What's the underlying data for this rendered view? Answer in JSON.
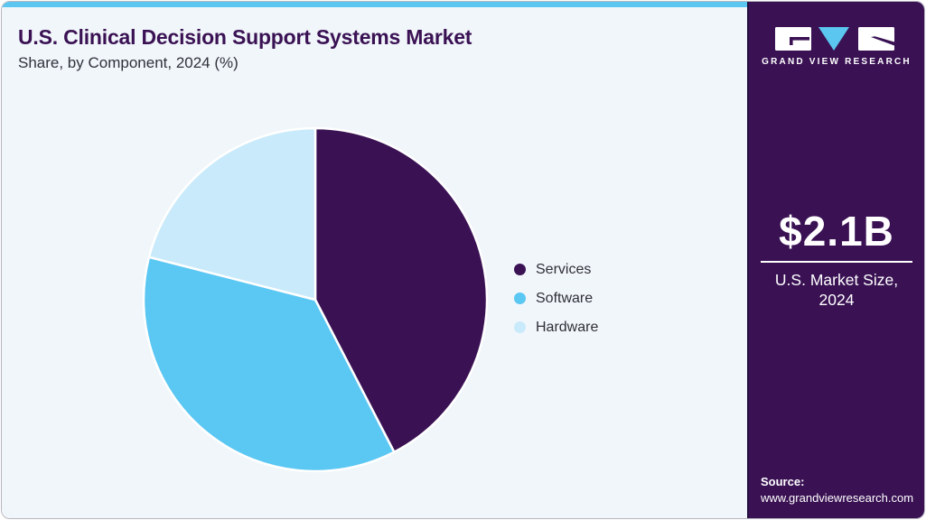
{
  "header": {
    "title": "U.S. Clinical Decision Support Systems Market",
    "subtitle": "Share, by Component, 2024 (%)"
  },
  "chart_data": {
    "type": "pie",
    "title": "U.S. Clinical Decision Support Systems Market Share, by Component, 2024 (%)",
    "categories": [
      "Services",
      "Software",
      "Hardware"
    ],
    "values": [
      42.4,
      36.6,
      21.0
    ],
    "unit": "%",
    "colors": [
      "#3a1254",
      "#5bc7f3",
      "#c8eafb"
    ],
    "slice_border_color": "#ffffff",
    "start_angle_deg": 0,
    "direction": "clockwise",
    "legend_position": "right",
    "data_labels": false
  },
  "sidebar": {
    "brand": "GRAND VIEW RESEARCH",
    "market_size": {
      "value": "$2.1B",
      "label_line1": "U.S. Market Size,",
      "label_line2": "2024"
    },
    "source": {
      "label": "Source:",
      "url": "www.grandviewresearch.com"
    },
    "background": "#3a1254"
  },
  "theme": {
    "accent_bar": "#5bc6ef",
    "main_background": "#f1f6fa",
    "title_color": "#3a1254",
    "subtitle_color": "#31313d",
    "legend_text_color": "#303038"
  }
}
